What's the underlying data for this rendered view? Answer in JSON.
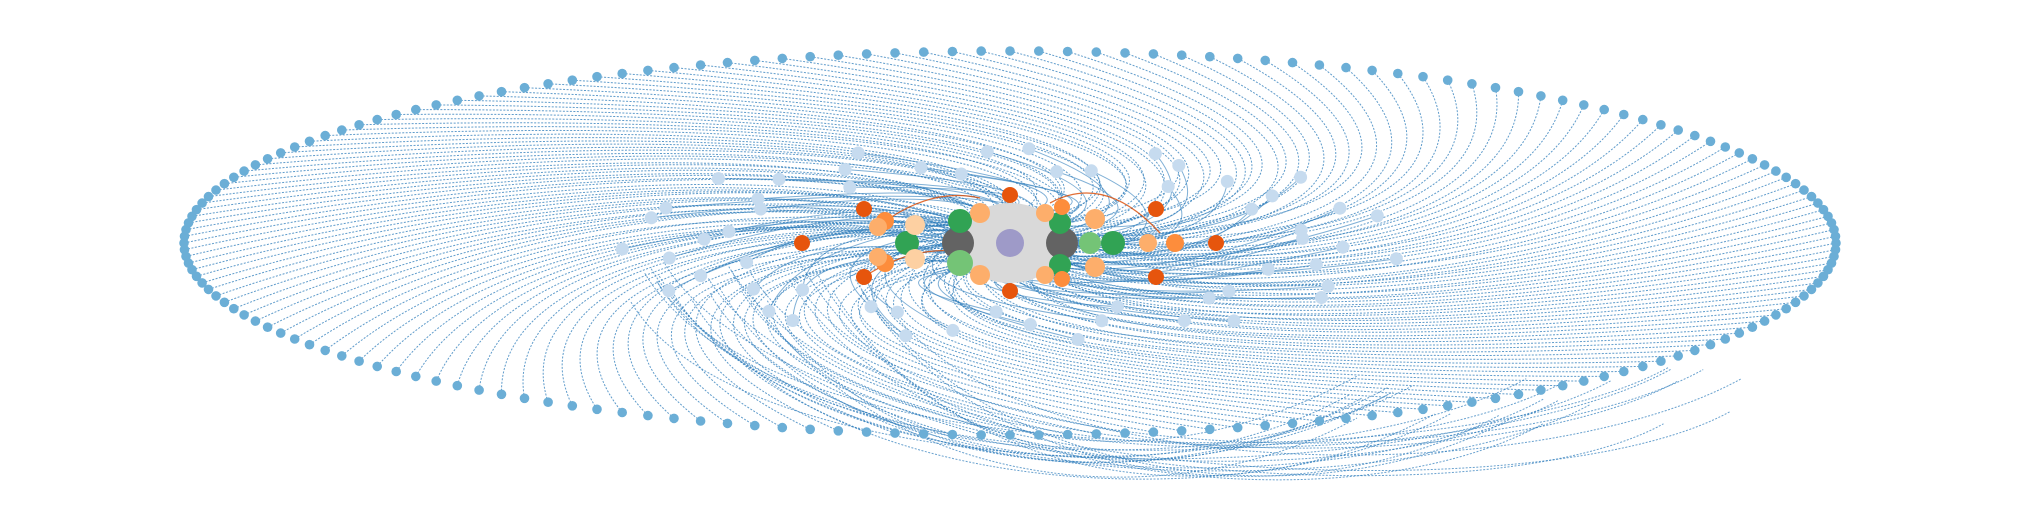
{
  "diagram": {
    "type": "radial-network-graph",
    "labels_shown": false,
    "colors": {
      "background": "#ffffff",
      "edge_primary": "#2b7bba",
      "edge_highlight": "#d94801",
      "outer_ring_node": "#6baed6",
      "middle_ring_node": "#c6dbef",
      "hub_disc": "#d9d9d9",
      "center_node": "#9e9ac8",
      "dark_node": "#636363",
      "node_dark_orange": "#e6550d",
      "node_orange": "#fd8d3c",
      "node_light_orange": "#fdae6b",
      "node_peach": "#fdd0a2",
      "node_green": "#31a354",
      "node_light_green": "#74c476"
    },
    "rings": [
      {
        "name": "outer-ring",
        "node_count": 180,
        "color_key": "outer_ring_node"
      },
      {
        "name": "middle-ring",
        "node_count": 56,
        "color_key": "middle_ring_node"
      },
      {
        "name": "inner-cluster",
        "node_count": 34
      }
    ]
  }
}
